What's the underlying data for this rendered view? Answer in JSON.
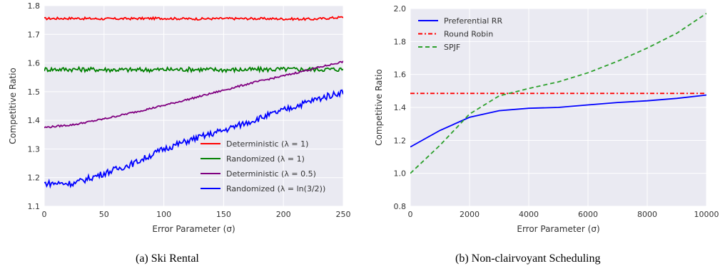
{
  "captions": [
    "(a) Ski Rental",
    "(b) Non-clairvoyant Scheduling"
  ],
  "chart_data": [
    {
      "type": "line",
      "caption": "(a) Ski Rental",
      "xlabel": "Error Parameter (σ)",
      "ylabel": "Competitive Ratio",
      "xlim": [
        0,
        250
      ],
      "ylim": [
        1.1,
        1.8
      ],
      "xticks": [
        0,
        50,
        100,
        150,
        200,
        250
      ],
      "yticks": [
        1.1,
        1.2,
        1.3,
        1.4,
        1.5,
        1.6,
        1.7,
        1.8
      ],
      "grid": true,
      "background": "#eaeaf2",
      "legend_position": "lower-right",
      "series": [
        {
          "name": "Deterministic (λ = 1)",
          "color": "#ff0000",
          "x": [
            0,
            25,
            50,
            75,
            100,
            125,
            150,
            175,
            200,
            225,
            250
          ],
          "y": [
            1.755,
            1.756,
            1.754,
            1.755,
            1.756,
            1.754,
            1.755,
            1.755,
            1.754,
            1.753,
            1.76
          ],
          "noise": 0.004
        },
        {
          "name": "Randomized (λ = 1)",
          "color": "#008000",
          "x": [
            0,
            25,
            50,
            75,
            100,
            125,
            150,
            175,
            200,
            225,
            250
          ],
          "y": [
            1.578,
            1.578,
            1.577,
            1.576,
            1.577,
            1.578,
            1.576,
            1.577,
            1.578,
            1.578,
            1.578
          ],
          "noise": 0.008
        },
        {
          "name": "Deterministic (λ = 0.5)",
          "color": "#800080",
          "x": [
            0,
            25,
            50,
            75,
            100,
            125,
            150,
            175,
            200,
            225,
            250
          ],
          "y": [
            1.375,
            1.385,
            1.405,
            1.428,
            1.452,
            1.478,
            1.505,
            1.532,
            1.555,
            1.58,
            1.605
          ],
          "noise": 0.003
        },
        {
          "name": "Randomized (λ = ln(3/2))",
          "color": "#0000ff",
          "x": [
            0,
            25,
            50,
            75,
            100,
            125,
            150,
            175,
            200,
            225,
            250
          ],
          "y": [
            1.18,
            1.18,
            1.215,
            1.25,
            1.3,
            1.335,
            1.365,
            1.4,
            1.435,
            1.47,
            1.5
          ],
          "noise": 0.011
        }
      ]
    },
    {
      "type": "line",
      "caption": "(b) Non-clairvoyant Scheduling",
      "xlabel": "Error Parameter (σ)",
      "ylabel": "Competitive Ratio",
      "xlim": [
        0,
        10000
      ],
      "ylim": [
        0.8,
        2.0
      ],
      "xticks": [
        0,
        2000,
        4000,
        6000,
        8000,
        10000
      ],
      "yticks": [
        0.8,
        1.0,
        1.2,
        1.4,
        1.6,
        1.8,
        2.0
      ],
      "grid": true,
      "background": "#eaeaf2",
      "legend_position": "upper-left",
      "series": [
        {
          "name": "Preferential RR",
          "color": "#0000ff",
          "style": "solid",
          "x": [
            0,
            1000,
            2000,
            3000,
            4000,
            5000,
            6000,
            7000,
            8000,
            9000,
            10000
          ],
          "y": [
            1.16,
            1.26,
            1.34,
            1.38,
            1.395,
            1.4,
            1.415,
            1.43,
            1.44,
            1.455,
            1.475
          ]
        },
        {
          "name": "Round Robin",
          "color": "#ff0000",
          "style": "dashdot",
          "x": [
            0,
            10000
          ],
          "y": [
            1.485,
            1.485
          ]
        },
        {
          "name": "SPJF",
          "color": "#2ca02c",
          "style": "dashed",
          "x": [
            0,
            1000,
            2000,
            3000,
            4000,
            5000,
            6000,
            7000,
            8000,
            9000,
            10000
          ],
          "y": [
            1.0,
            1.17,
            1.36,
            1.47,
            1.515,
            1.555,
            1.61,
            1.68,
            1.76,
            1.85,
            1.97
          ]
        }
      ]
    }
  ]
}
